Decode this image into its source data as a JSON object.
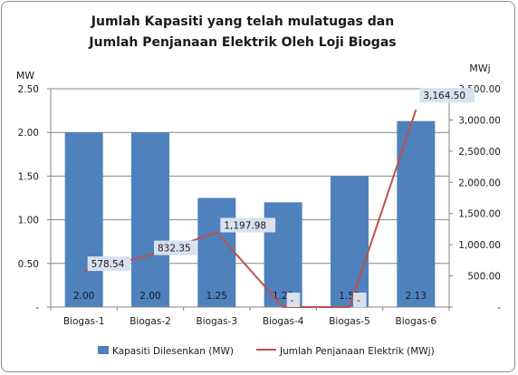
{
  "chart_data": {
    "type": "bar",
    "title_lines": [
      "Jumlah Kapasiti yang telah mulatugas dan",
      "Jumlah Penjanaan Elektrik Oleh Loji Biogas"
    ],
    "categories": [
      "Biogas-1",
      "Biogas-2",
      "Biogas-3",
      "Biogas-4",
      "Biogas-5",
      "Biogas-6"
    ],
    "y_left": {
      "label": "MW",
      "range": [
        0,
        2.5
      ],
      "ticks": [
        {
          "value": 0,
          "label": "-"
        },
        {
          "value": 0.5,
          "label": "0.50"
        },
        {
          "value": 1.0,
          "label": "1.00"
        },
        {
          "value": 1.5,
          "label": "1.50"
        },
        {
          "value": 2.0,
          "label": "2.00"
        },
        {
          "value": 2.5,
          "label": "2.50"
        }
      ]
    },
    "y_right": {
      "label": "MWj",
      "range": [
        0,
        3500
      ],
      "ticks": [
        {
          "value": 0,
          "label": "-"
        },
        {
          "value": 500,
          "label": "500.00"
        },
        {
          "value": 1000,
          "label": "1,000.00"
        },
        {
          "value": 1500,
          "label": "1,500.00"
        },
        {
          "value": 2000,
          "label": "2,000.00"
        },
        {
          "value": 2500,
          "label": "2,500.00"
        },
        {
          "value": 3000,
          "label": "3,000.00"
        },
        {
          "value": 3500,
          "label": "3,500.00"
        }
      ]
    },
    "series": [
      {
        "name": "Kapasiti Dilesenkan (MW)",
        "kind": "bar",
        "axis": "left",
        "color": "#4f81bd",
        "values": [
          2.0,
          2.0,
          1.25,
          1.2,
          1.5,
          2.13
        ],
        "labels": [
          "2.00",
          "2.00",
          "1.25",
          "1.20",
          "1.50",
          "2.13"
        ]
      },
      {
        "name": "Jumlah Penjanaan Elektrik (MWj)",
        "kind": "line",
        "axis": "right",
        "color": "#c0504d",
        "values": [
          578.54,
          832.35,
          1197.98,
          0,
          0,
          3164.5
        ],
        "labels": [
          "578.54",
          "832.35",
          "1,197.98",
          "-",
          "-",
          "3,164.50"
        ]
      }
    ],
    "legend_position": "bottom",
    "grid": true
  }
}
